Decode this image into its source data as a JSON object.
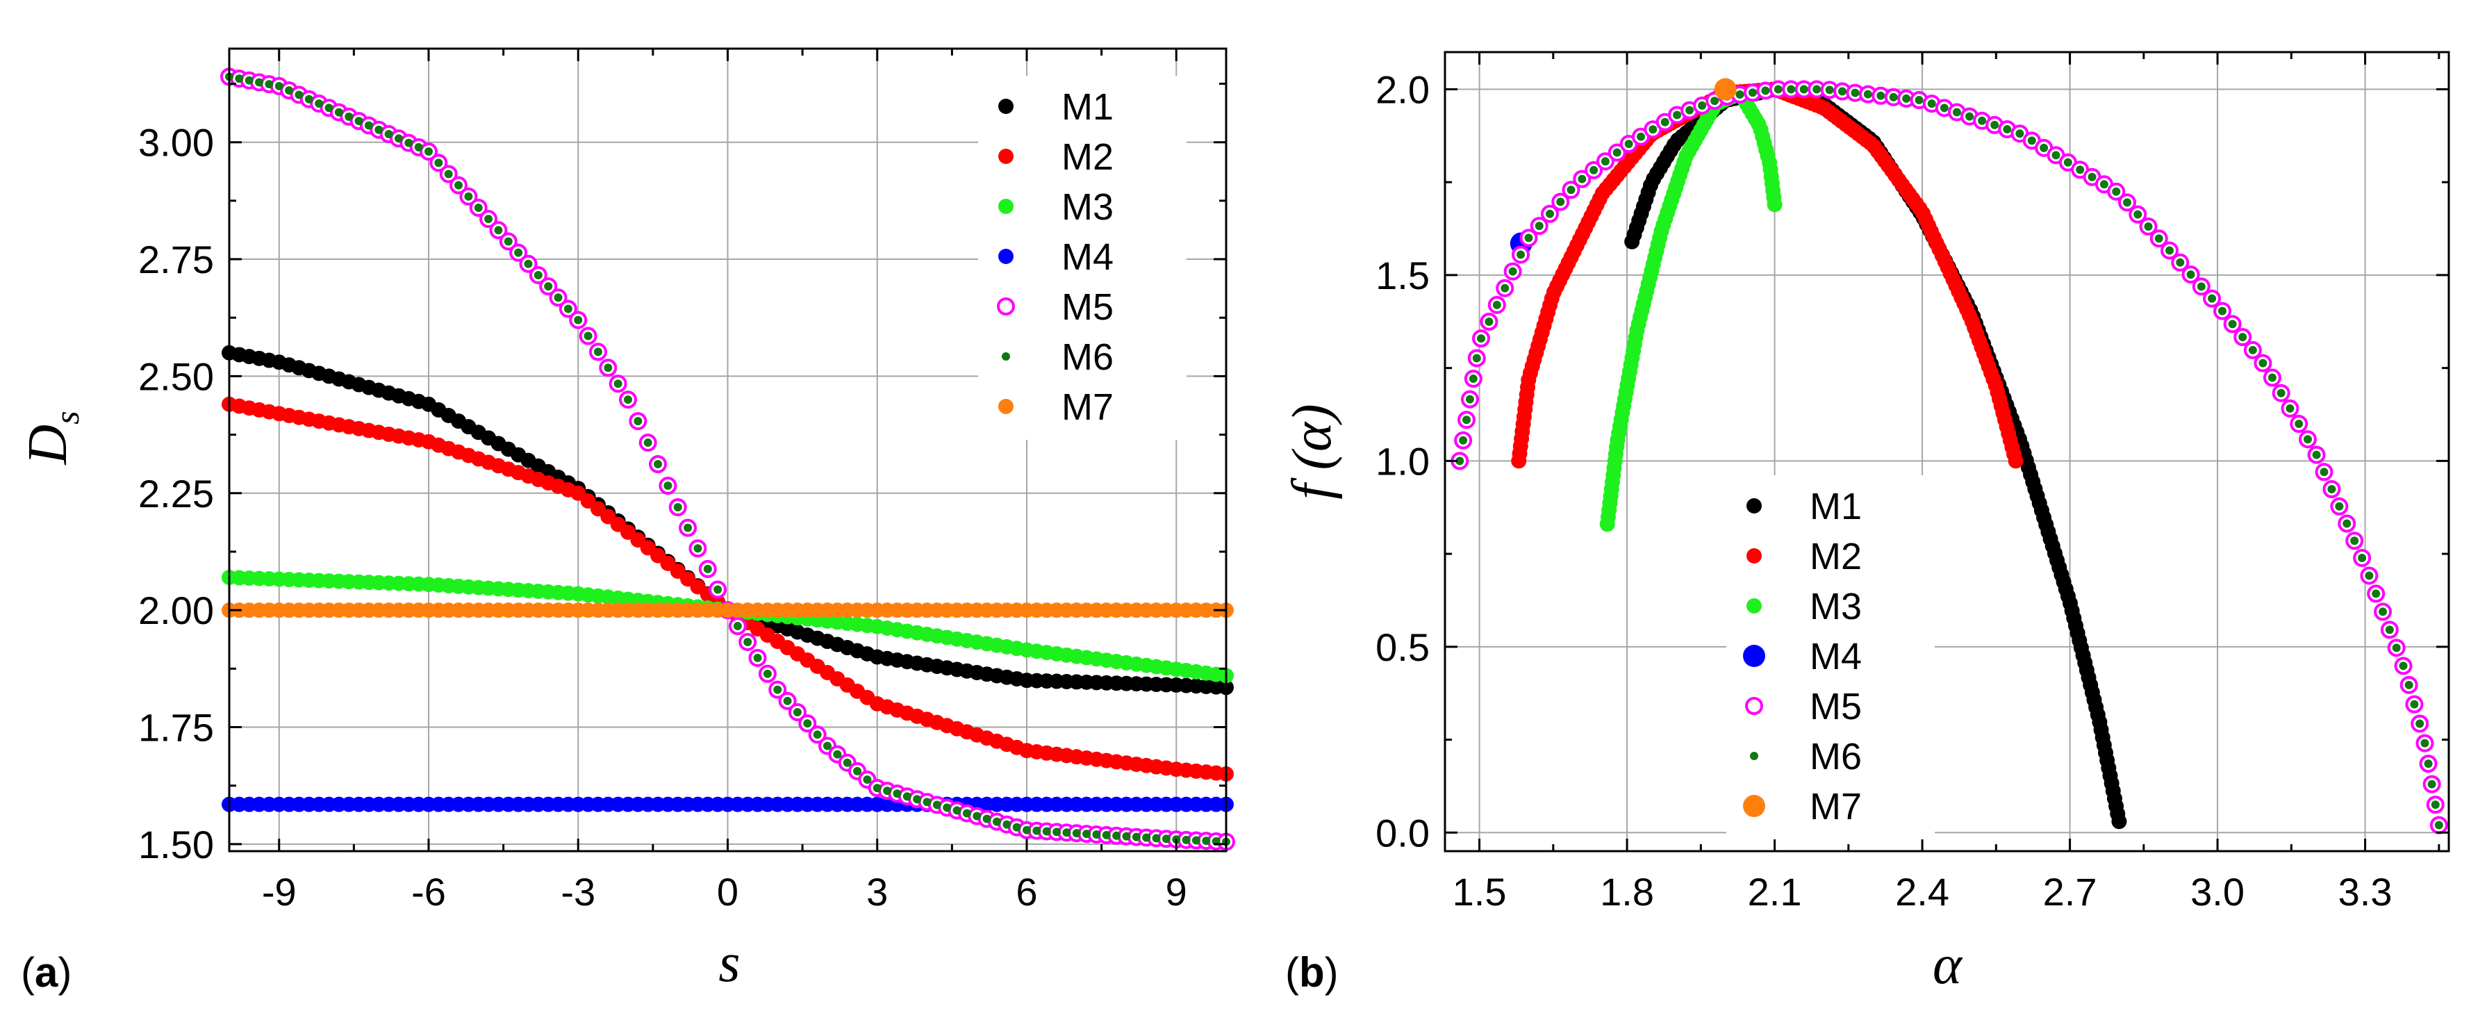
{
  "panel_labels": {
    "a": "a",
    "b": "b"
  },
  "colors": {
    "M1": "#000000",
    "M2": "#ff0000",
    "M3": "#1ef01e",
    "M4": "#0000ff",
    "M5": "#ff00ff",
    "M6": "#117711",
    "M7": "#ff7f0e"
  },
  "chart_data": [
    {
      "id": "a",
      "type": "scatter",
      "title": "",
      "xlabel": "s",
      "ylabel_main": "D",
      "ylabel_sub": "s",
      "xlim": [
        -10,
        10
      ],
      "ylim": [
        1.485,
        3.2
      ],
      "xticks": [
        -9,
        -6,
        -3,
        0,
        3,
        6,
        9
      ],
      "xtick_labels": [
        "-9",
        "-6",
        "-3",
        "0",
        "3",
        "6",
        "9"
      ],
      "yticks": [
        1.5,
        1.75,
        2.0,
        2.25,
        2.5,
        2.75,
        3.0
      ],
      "ytick_labels": [
        "1.50",
        "1.75",
        "2.00",
        "2.25",
        "2.50",
        "2.75",
        "3.00"
      ],
      "grid": true,
      "legend_position": "top-right",
      "legend": [
        "M1",
        "M2",
        "M3",
        "M4",
        "M5",
        "M6",
        "M7"
      ],
      "series": [
        {
          "name": "M1",
          "x_range": [
            -10,
            10
          ],
          "samples": [
            [
              -10,
              2.55
            ],
            [
              -9,
              2.53
            ],
            [
              -6,
              2.44
            ],
            [
              -3,
              2.26
            ],
            [
              0,
              2.0
            ],
            [
              3,
              1.9
            ],
            [
              6,
              1.85
            ],
            [
              9,
              1.84
            ],
            [
              10,
              1.835
            ]
          ]
        },
        {
          "name": "M2",
          "x_range": [
            -10,
            10
          ],
          "samples": [
            [
              -10,
              2.44
            ],
            [
              -9,
              2.42
            ],
            [
              -6,
              2.36
            ],
            [
              -3,
              2.25
            ],
            [
              0,
              2.0
            ],
            [
              3,
              1.8
            ],
            [
              6,
              1.7
            ],
            [
              9,
              1.66
            ],
            [
              10,
              1.65
            ]
          ]
        },
        {
          "name": "M3",
          "x_range": [
            -10,
            10
          ],
          "samples": [
            [
              -10,
              2.07
            ],
            [
              -6,
              2.055
            ],
            [
              -3,
              2.035
            ],
            [
              0,
              2.0
            ],
            [
              3,
              1.965
            ],
            [
              6,
              1.915
            ],
            [
              10,
              1.86
            ]
          ]
        },
        {
          "name": "M4",
          "x_range": [
            -10,
            10
          ],
          "samples": [
            [
              -10,
              1.585
            ],
            [
              10,
              1.585
            ]
          ]
        },
        {
          "name": "M5",
          "x_range": [
            -10,
            10
          ],
          "samples": [
            [
              -10,
              3.14
            ],
            [
              -9,
              3.12
            ],
            [
              -6,
              2.98
            ],
            [
              -3,
              2.62
            ],
            [
              -2,
              2.45
            ],
            [
              -1,
              2.22
            ],
            [
              0,
              2.0
            ],
            [
              1,
              1.83
            ],
            [
              2,
              1.71
            ],
            [
              3,
              1.62
            ],
            [
              6,
              1.53
            ],
            [
              9,
              1.51
            ],
            [
              10,
              1.505
            ]
          ]
        },
        {
          "name": "M6",
          "x_range": [
            -10,
            10
          ],
          "samples": [
            [
              -10,
              3.14
            ],
            [
              -9,
              3.12
            ],
            [
              -6,
              2.98
            ],
            [
              -3,
              2.62
            ],
            [
              -2,
              2.45
            ],
            [
              -1,
              2.22
            ],
            [
              0,
              2.0
            ],
            [
              1,
              1.83
            ],
            [
              2,
              1.71
            ],
            [
              3,
              1.62
            ],
            [
              6,
              1.53
            ],
            [
              9,
              1.51
            ],
            [
              10,
              1.505
            ]
          ]
        },
        {
          "name": "M7",
          "x_range": [
            -10,
            10
          ],
          "samples": [
            [
              -10,
              2.0
            ],
            [
              10,
              2.0
            ]
          ]
        }
      ]
    },
    {
      "id": "b",
      "type": "scatter",
      "title": "",
      "xlabel": "α",
      "ylabel": "f (α)",
      "xlim": [
        1.43,
        3.47
      ],
      "ylim": [
        -0.05,
        2.1
      ],
      "xticks": [
        1.5,
        1.8,
        2.1,
        2.4,
        2.7,
        3.0,
        3.3
      ],
      "xtick_labels": [
        "1.5",
        "1.8",
        "2.1",
        "2.4",
        "2.7",
        "3.0",
        "3.3"
      ],
      "yticks": [
        0.0,
        0.5,
        1.0,
        1.5,
        2.0
      ],
      "ytick_labels": [
        "0.0",
        "0.5",
        "1.0",
        "1.5",
        "2.0"
      ],
      "grid": true,
      "legend_position": "bottom-center",
      "legend": [
        "M1",
        "M2",
        "M3",
        "M4",
        "M5",
        "M6",
        "M7"
      ],
      "series": [
        {
          "name": "M1",
          "samples": [
            [
              1.81,
              1.59
            ],
            [
              1.85,
              1.75
            ],
            [
              1.9,
              1.86
            ],
            [
              2.0,
              1.97
            ],
            [
              2.1,
              2.0
            ],
            [
              2.2,
              1.96
            ],
            [
              2.3,
              1.86
            ],
            [
              2.4,
              1.66
            ],
            [
              2.5,
              1.4
            ],
            [
              2.6,
              1.05
            ],
            [
              2.7,
              0.62
            ],
            [
              2.76,
              0.3
            ],
            [
              2.8,
              0.03
            ]
          ]
        },
        {
          "name": "M2",
          "samples": [
            [
              1.58,
              1.0
            ],
            [
              1.6,
              1.22
            ],
            [
              1.65,
              1.45
            ],
            [
              1.75,
              1.72
            ],
            [
              1.85,
              1.88
            ],
            [
              2.0,
              1.99
            ],
            [
              2.1,
              2.0
            ],
            [
              2.2,
              1.95
            ],
            [
              2.3,
              1.85
            ],
            [
              2.4,
              1.67
            ],
            [
              2.5,
              1.38
            ],
            [
              2.55,
              1.2
            ],
            [
              2.59,
              1.0
            ]
          ]
        },
        {
          "name": "M3",
          "samples": [
            [
              1.76,
              0.83
            ],
            [
              1.78,
              1.05
            ],
            [
              1.82,
              1.35
            ],
            [
              1.87,
              1.62
            ],
            [
              1.92,
              1.82
            ],
            [
              1.98,
              1.96
            ],
            [
              2.03,
              1.99
            ],
            [
              2.07,
              1.9
            ],
            [
              2.09,
              1.8
            ],
            [
              2.1,
              1.69
            ]
          ]
        },
        {
          "name": "M4",
          "samples": [
            [
              1.585,
              1.585
            ]
          ]
        },
        {
          "name": "M5",
          "samples": [
            [
              1.46,
              1.0
            ],
            [
              1.5,
              1.32
            ],
            [
              1.6,
              1.6
            ],
            [
              1.7,
              1.75
            ],
            [
              1.8,
              1.85
            ],
            [
              1.9,
              1.93
            ],
            [
              2.0,
              1.98
            ],
            [
              2.1,
              2.0
            ],
            [
              2.2,
              2.0
            ],
            [
              2.4,
              1.97
            ],
            [
              2.6,
              1.88
            ],
            [
              2.8,
              1.72
            ],
            [
              3.0,
              1.42
            ],
            [
              3.1,
              1.25
            ],
            [
              3.2,
              1.02
            ],
            [
              3.3,
              0.72
            ],
            [
              3.38,
              0.44
            ],
            [
              3.42,
              0.25
            ],
            [
              3.45,
              0.02
            ]
          ]
        },
        {
          "name": "M6",
          "samples": [
            [
              1.46,
              1.0
            ],
            [
              1.5,
              1.32
            ],
            [
              1.6,
              1.6
            ],
            [
              1.7,
              1.75
            ],
            [
              1.8,
              1.85
            ],
            [
              1.9,
              1.93
            ],
            [
              2.0,
              1.98
            ],
            [
              2.1,
              2.0
            ],
            [
              2.2,
              2.0
            ],
            [
              2.4,
              1.97
            ],
            [
              2.6,
              1.88
            ],
            [
              2.8,
              1.72
            ],
            [
              3.0,
              1.42
            ],
            [
              3.1,
              1.25
            ],
            [
              3.2,
              1.02
            ],
            [
              3.3,
              0.72
            ],
            [
              3.38,
              0.44
            ],
            [
              3.42,
              0.25
            ],
            [
              3.45,
              0.02
            ]
          ]
        },
        {
          "name": "M7",
          "samples": [
            [
              2.0,
              2.0
            ]
          ]
        }
      ]
    }
  ]
}
